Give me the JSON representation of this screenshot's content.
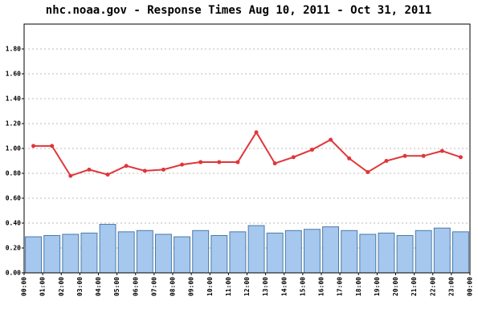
{
  "chart_data": {
    "type": "bar",
    "title": "nhc.noaa.gov - Response Times Aug 10, 2011 - Oct 31, 2011",
    "x_labels": [
      "00:00",
      "01:00",
      "02:00",
      "03:00",
      "04:00",
      "05:00",
      "06:00",
      "07:00",
      "08:00",
      "09:00",
      "10:00",
      "11:00",
      "12:00",
      "13:00",
      "14:00",
      "15:00",
      "16:00",
      "17:00",
      "18:00",
      "19:00",
      "20:00",
      "21:00",
      "22:00",
      "23:00",
      "00:00"
    ],
    "series": [
      {
        "type": "bar",
        "color": "#a6c8ee",
        "values": [
          0.29,
          0.3,
          0.31,
          0.32,
          0.39,
          0.33,
          0.34,
          0.31,
          0.29,
          0.34,
          0.3,
          0.33,
          0.38,
          0.32,
          0.34,
          0.35,
          0.37,
          0.34,
          0.31,
          0.32,
          0.3,
          0.34,
          0.36,
          0.33
        ]
      },
      {
        "type": "line",
        "color": "#e0363a",
        "values": [
          1.02,
          1.02,
          0.78,
          0.83,
          0.79,
          0.86,
          0.82,
          0.83,
          0.87,
          0.89,
          0.89,
          0.89,
          1.13,
          0.88,
          0.93,
          0.99,
          1.07,
          0.92,
          0.81,
          0.9,
          0.94,
          0.94,
          0.98,
          0.93
        ]
      }
    ],
    "ylim": [
      0,
      2
    ],
    "yticks": [
      {
        "value": 0,
        "label": "0.00"
      },
      {
        "value": 0.2,
        "label": "0.20"
      },
      {
        "value": 0.4,
        "label": "0.40"
      },
      {
        "value": 0.6,
        "label": "0.60"
      },
      {
        "value": 0.8,
        "label": "0.80"
      },
      {
        "value": 1.0,
        "label": "1.00"
      },
      {
        "value": 1.2,
        "label": "1.20"
      },
      {
        "value": 1.4,
        "label": "1.40"
      },
      {
        "value": 1.6,
        "label": "1.60"
      },
      {
        "value": 1.8,
        "label": "1.80"
      }
    ],
    "grid": true
  }
}
